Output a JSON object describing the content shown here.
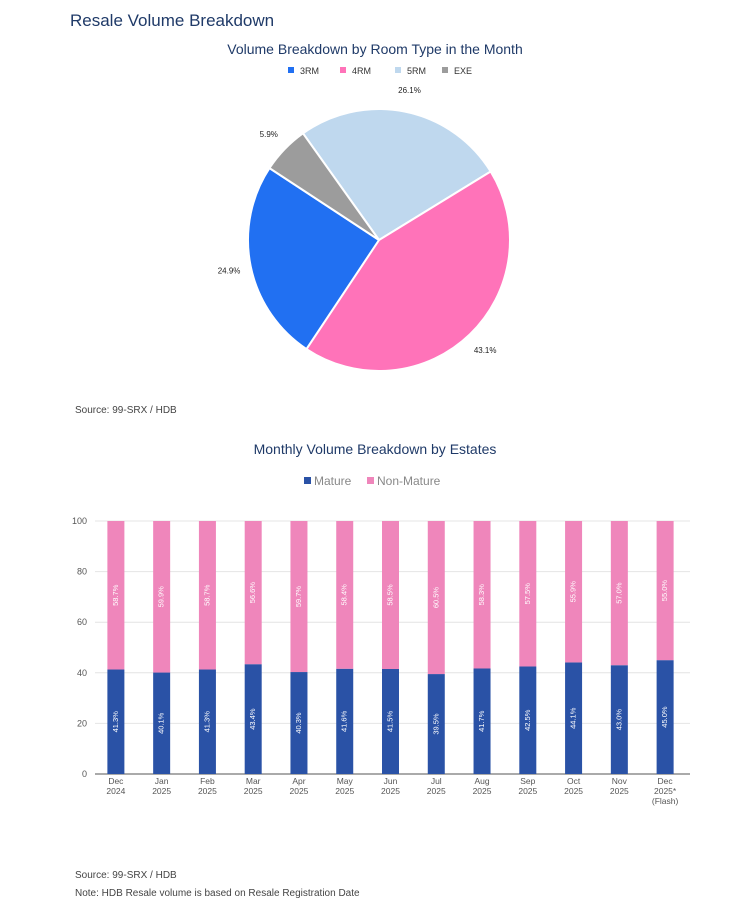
{
  "page": {
    "section_title": "Resale Volume Breakdown",
    "pie_source": "Source: 99-SRX / HDB",
    "bar_source": "Source: 99-SRX / HDB",
    "bar_note": "Note: HDB Resale volume is based on Resale Registration Date"
  },
  "chart_data": [
    {
      "type": "pie",
      "title": "Volume Breakdown by Room Type in the Month",
      "legend_position": "top",
      "categories": [
        "3RM",
        "4RM",
        "5RM",
        "EXE"
      ],
      "values": [
        24.9,
        43.1,
        26.1,
        5.9
      ],
      "labels": [
        "24.9%",
        "43.1%",
        "26.1%",
        "5.9%"
      ],
      "colors": [
        "#2170f2",
        "#ff73b9",
        "#bfd8ee",
        "#9c9c9c"
      ]
    },
    {
      "type": "bar",
      "stacked": true,
      "title": "Monthly Volume Breakdown by Estates",
      "legend_position": "top",
      "categories": [
        [
          "Dec",
          "2024"
        ],
        [
          "Jan",
          "2025"
        ],
        [
          "Feb",
          "2025"
        ],
        [
          "Mar",
          "2025"
        ],
        [
          "Apr",
          "2025"
        ],
        [
          "May",
          "2025"
        ],
        [
          "Jun",
          "2025"
        ],
        [
          "Jul",
          "2025"
        ],
        [
          "Aug",
          "2025"
        ],
        [
          "Sep",
          "2025"
        ],
        [
          "Oct",
          "2025"
        ],
        [
          "Nov",
          "2025"
        ],
        [
          "Dec",
          "2025*",
          "(Flash)"
        ]
      ],
      "series": [
        {
          "name": "Mature",
          "color": "#2a52a6",
          "values": [
            41.3,
            40.1,
            41.3,
            43.4,
            40.3,
            41.6,
            41.5,
            39.5,
            41.7,
            42.5,
            44.1,
            43.0,
            45.0
          ],
          "labels": [
            "41.3%",
            "40.1%",
            "41.3%",
            "43.4%",
            "40.3%",
            "41.6%",
            "41.5%",
            "39.5%",
            "41.7%",
            "42.5%",
            "44.1%",
            "43.0%",
            "45.0%"
          ]
        },
        {
          "name": "Non-Mature",
          "color": "#ef86bb",
          "values": [
            58.7,
            59.9,
            58.7,
            56.6,
            59.7,
            58.4,
            58.5,
            60.5,
            58.3,
            57.5,
            55.9,
            57.0,
            55.0
          ],
          "labels": [
            "58.7%",
            "59.9%",
            "58.7%",
            "56.6%",
            "59.7%",
            "58.4%",
            "58.5%",
            "60.5%",
            "58.3%",
            "57.5%",
            "55.9%",
            "57.0%",
            "55.0%"
          ]
        }
      ],
      "ylim": [
        0,
        100
      ],
      "yticks": [
        "0",
        "20",
        "40",
        "60",
        "80",
        "100"
      ],
      "grid": true
    }
  ]
}
